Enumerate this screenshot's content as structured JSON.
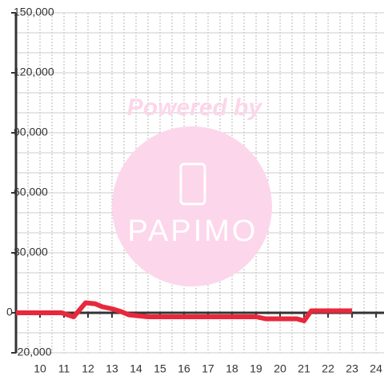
{
  "chart_data": {
    "type": "line",
    "annotations": [
      "Powered by",
      "PAPIMO"
    ],
    "x": [
      9,
      10.9,
      11.4,
      11.9,
      12.3,
      12.6,
      13,
      13.4,
      13.7,
      14.1,
      14.5,
      19,
      19.4,
      20,
      20.7,
      21,
      21.3,
      22,
      23
    ],
    "series": [
      {
        "color": "#e8283c",
        "values": [
          0,
          0,
          -2000,
          5000,
          4500,
          3000,
          2000,
          500,
          -1000,
          -1500,
          -2000,
          -2000,
          -3000,
          -3000,
          -3000,
          -4000,
          1000,
          1000,
          1000
        ]
      }
    ],
    "xlim": [
      9,
      24.33
    ],
    "xticks": [
      10,
      11,
      12,
      13,
      14,
      15,
      16,
      17,
      18,
      19,
      20,
      21,
      22,
      23,
      24
    ],
    "x_gridlines": [
      9.5,
      10,
      10.5,
      11,
      11.5,
      12,
      12.5,
      13,
      13.5,
      14,
      14.5,
      15,
      15.5,
      16,
      16.5,
      17,
      17.5,
      18,
      18.5,
      19,
      19.5,
      20,
      20.5,
      21,
      21.5,
      22,
      22.5,
      23,
      23.5,
      24
    ],
    "ylim": [
      -20000,
      150000
    ],
    "yticks": [
      {
        "value": -20000,
        "label": "-20,000"
      },
      0,
      {
        "value": 30000,
        "label": "30,000"
      },
      {
        "value": 60000,
        "label": "60,000"
      },
      {
        "value": 90000,
        "label": "90,000"
      },
      {
        "value": 120000,
        "label": "120,000"
      },
      {
        "value": 150000,
        "label": "150,000"
      }
    ],
    "y_gridlines": [
      -20000,
      -10000,
      10000,
      20000,
      30000,
      40000,
      50000,
      60000,
      70000,
      80000,
      90000,
      100000,
      110000,
      120000,
      130000,
      140000,
      150000
    ],
    "grid": true
  }
}
